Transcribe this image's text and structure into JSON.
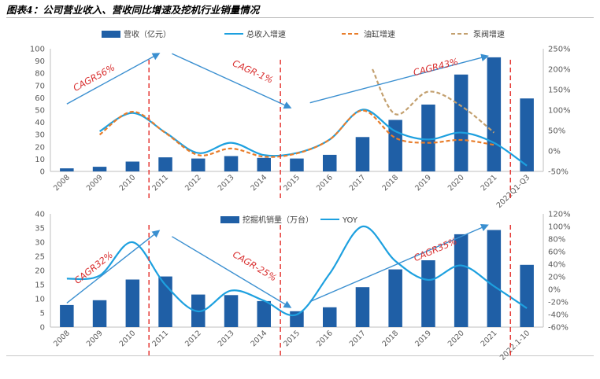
{
  "figure_title": "图表4：公司营业收入、营收同比增速及挖机行业销量情况",
  "colors": {
    "bar": "#1f5fa6",
    "line_main": "#1da0df",
    "oil_cylinder": "#e87d2b",
    "pump_valve": "#c3a06f",
    "divider": "#e53935",
    "cagr_arrow": "#3a8fd0",
    "cagr_text": "#d93030",
    "axis_text": "#595959"
  },
  "chart_data": [
    {
      "type": "bar",
      "categories": [
        "2008",
        "2009",
        "2010",
        "2011",
        "2012",
        "2013",
        "2014",
        "2015",
        "2016",
        "2017",
        "2018",
        "2019",
        "2020",
        "2021",
        "2022Q1-Q3"
      ],
      "legend": {
        "bar": "营收（亿元）",
        "line_main": "总收入增速",
        "line_oil": "油缸增速",
        "line_pump": "泵阀增速"
      },
      "y_left": {
        "min": 0,
        "max": 100,
        "ticks": [
          "0",
          "10",
          "20",
          "30",
          "40",
          "50",
          "60",
          "70",
          "80",
          "90",
          "100"
        ]
      },
      "y_right": {
        "min": -50,
        "max": 250,
        "ticks": [
          "-50%",
          "0%",
          "50%",
          "100%",
          "150%",
          "200%",
          "250%"
        ]
      },
      "series": [
        {
          "name": "营收（亿元）",
          "kind": "bar",
          "axis": "left",
          "values": [
            2.5,
            3.8,
            8,
            11.5,
            10.5,
            12.5,
            11,
            10.5,
            13.5,
            28,
            42,
            54.5,
            79,
            93,
            59.5
          ]
        },
        {
          "name": "总收入增速",
          "kind": "line",
          "axis": "right",
          "points": [
            [
              1,
              48
            ],
            [
              2,
              93
            ],
            [
              3,
              45
            ],
            [
              4,
              -5
            ],
            [
              5,
              20
            ],
            [
              6,
              -10
            ],
            [
              7,
              -5
            ],
            [
              8,
              28
            ],
            [
              9,
              101
            ],
            [
              10,
              48
            ],
            [
              11,
              28
            ],
            [
              12,
              45
            ],
            [
              13,
              20
            ],
            [
              14,
              -36
            ]
          ]
        },
        {
          "name": "油缸增速",
          "kind": "line-dashed",
          "axis": "right",
          "points": [
            [
              1,
              40
            ],
            [
              2,
              96
            ],
            [
              3,
              44
            ],
            [
              4,
              -10
            ],
            [
              5,
              6
            ],
            [
              6,
              -14
            ],
            [
              7,
              -6
            ],
            [
              8,
              28
            ],
            [
              9,
              99
            ],
            [
              10,
              32
            ],
            [
              11,
              20
            ],
            [
              12,
              27
            ],
            [
              13,
              15
            ]
          ]
        },
        {
          "name": "泵阀增速",
          "kind": "line-dashed",
          "axis": "right",
          "points": [
            [
              9.3,
              200
            ],
            [
              10,
              90
            ],
            [
              11,
              145
            ],
            [
              12,
              110
            ],
            [
              13,
              45
            ]
          ]
        }
      ],
      "dividers_after": [
        "2010",
        "2014",
        "2021"
      ],
      "cagr_labels": [
        {
          "text": "CAGR56%",
          "from": [
            0,
            55
          ],
          "to": [
            2.8,
            96
          ]
        },
        {
          "text": "CAGR-1%",
          "from": [
            3.2,
            96
          ],
          "to": [
            6.8,
            52
          ]
        },
        {
          "text": "CAGR43%",
          "from": [
            7.4,
            56
          ],
          "to": [
            12.8,
            94
          ]
        }
      ]
    },
    {
      "type": "bar",
      "categories": [
        "2008",
        "2009",
        "2010",
        "2011",
        "2012",
        "2013",
        "2014",
        "2015",
        "2016",
        "2017",
        "2018",
        "2019",
        "2020",
        "2021",
        "2022.1-10"
      ],
      "legend": {
        "bar": "挖掘机销量（万台）",
        "line": "YOY"
      },
      "y_left": {
        "min": 0,
        "max": 40,
        "ticks": [
          "0",
          "5",
          "10",
          "15",
          "20",
          "25",
          "30",
          "35",
          "40"
        ]
      },
      "y_right": {
        "min": -60,
        "max": 120,
        "ticks": [
          "-60%",
          "-40%",
          "-20%",
          "0%",
          "20%",
          "40%",
          "60%",
          "80%",
          "100%",
          "120%"
        ]
      },
      "series": [
        {
          "name": "挖掘机销量（万台）",
          "kind": "bar",
          "axis": "left",
          "values": [
            7.8,
            9.5,
            16.8,
            17.9,
            11.5,
            11.3,
            9.2,
            5.6,
            7.0,
            14.1,
            20.4,
            23.6,
            32.8,
            34.3,
            22.0
          ]
        },
        {
          "name": "YOY",
          "kind": "line",
          "axis": "right",
          "points": [
            [
              0,
              17
            ],
            [
              1,
              22
            ],
            [
              2,
              75
            ],
            [
              3,
              7
            ],
            [
              4,
              -35
            ],
            [
              5,
              -2
            ],
            [
              6,
              -18
            ],
            [
              7,
              -40
            ],
            [
              8,
              25
            ],
            [
              9,
              100
            ],
            [
              10,
              45
            ],
            [
              11,
              15
            ],
            [
              12,
              38
            ],
            [
              13,
              5
            ],
            [
              14,
              -30
            ]
          ]
        }
      ],
      "dividers_after": [
        "2010",
        "2014",
        "2021"
      ],
      "cagr_labels": [
        {
          "text": "CAGR32%",
          "from": [
            0,
            8.5
          ],
          "to": [
            2.8,
            34
          ]
        },
        {
          "text": "CAGR-25%",
          "from": [
            3.2,
            32
          ],
          "to": [
            6.8,
            7
          ]
        },
        {
          "text": "CAGR35%",
          "from": [
            7.4,
            9
          ],
          "to": [
            12.8,
            36
          ]
        }
      ]
    }
  ]
}
